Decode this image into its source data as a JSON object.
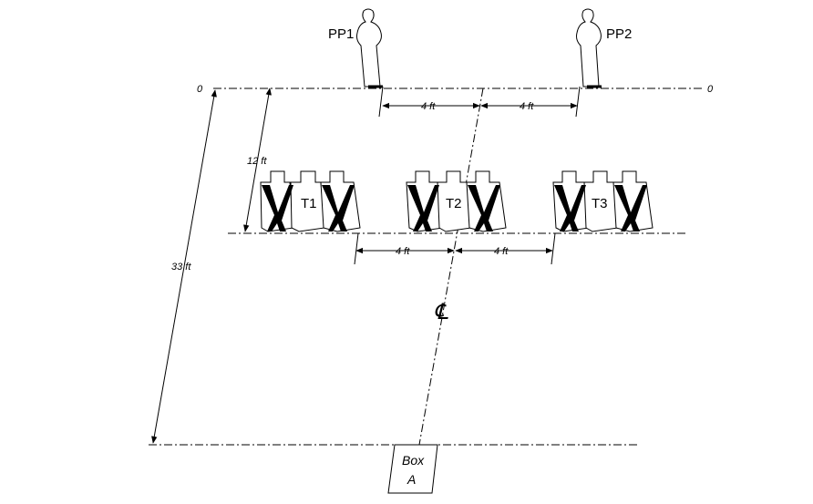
{
  "diagram": {
    "props": [
      {
        "id": "pp1",
        "label": "PP1"
      },
      {
        "id": "pp2",
        "label": "PP2"
      }
    ],
    "target_groups": [
      {
        "id": "t1",
        "label": "T1"
      },
      {
        "id": "t2",
        "label": "T2"
      },
      {
        "id": "t3",
        "label": "T3"
      }
    ],
    "zero_left": "0",
    "zero_right": "0",
    "dim_pp_left": "4 ft",
    "dim_pp_right": "4 ft",
    "dim_t_left": "4 ft",
    "dim_t_right": "4 ft",
    "dim_12": "12 ft",
    "dim_33": "33 ft",
    "centerline_symbol": "℄",
    "box": {
      "line1": "Box",
      "line2": "A"
    },
    "colors": {
      "ink": "#000000",
      "background": "#ffffff"
    }
  }
}
